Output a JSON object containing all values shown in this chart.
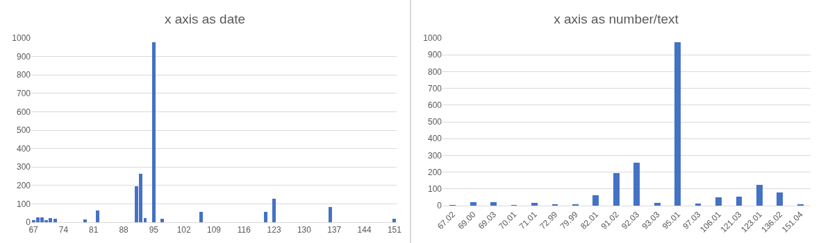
{
  "chart_data": [
    {
      "type": "bar",
      "title": "x axis as date",
      "x": [
        67,
        68,
        69,
        70,
        71,
        72,
        79,
        82,
        91,
        92,
        93,
        95,
        97,
        106,
        121,
        123,
        136,
        151
      ],
      "values": [
        12,
        27,
        27,
        13,
        23,
        17,
        15,
        65,
        197,
        262,
        23,
        978,
        18,
        55,
        58,
        128,
        81,
        17
      ],
      "color": "#4472c4",
      "xlim": [
        66.5,
        151.5
      ],
      "xticks": [
        67,
        74,
        81,
        88,
        95,
        102,
        109,
        116,
        123,
        130,
        137,
        144,
        151
      ],
      "ylim": [
        0,
        1000
      ],
      "yticks": [
        0,
        100,
        200,
        300,
        400,
        500,
        600,
        700,
        800,
        900,
        1000
      ],
      "grid": "y"
    },
    {
      "type": "bar",
      "title": "x axis as number/text",
      "categories": [
        "67.02",
        "69.00",
        "69.03",
        "70.01",
        "71.01",
        "72.99",
        "79.99",
        "82.01",
        "91.02",
        "92.03",
        "93.03",
        "95.01",
        "97.03",
        "106.01",
        "121.03",
        "123.01",
        "136.02",
        "151.04"
      ],
      "values": [
        5,
        22,
        22,
        5,
        17,
        9,
        9,
        60,
        193,
        258,
        17,
        975,
        13,
        48,
        52,
        125,
        78,
        9
      ],
      "color": "#4472c4",
      "ylim": [
        0,
        1000
      ],
      "yticks": [
        0,
        100,
        200,
        300,
        400,
        500,
        600,
        700,
        800,
        900,
        1000
      ],
      "grid": "y"
    }
  ]
}
